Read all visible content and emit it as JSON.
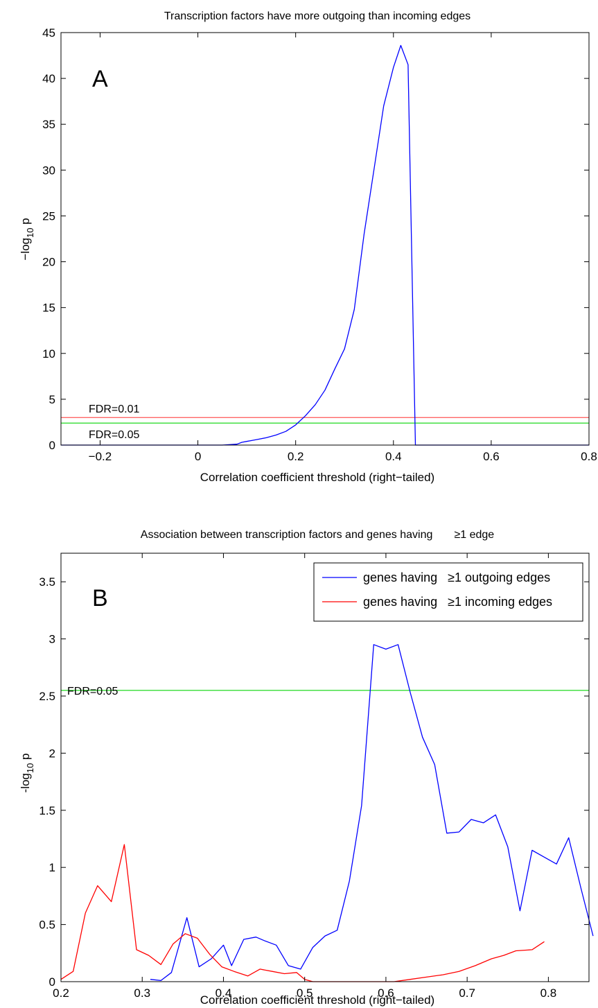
{
  "chart_data": [
    {
      "type": "line",
      "panel_label": "A",
      "title": "Transcription factors have more outgoing than incoming edges",
      "xlabel": "Correlation coefficient threshold (right−tailed)",
      "ylabel": {
        "prefix": "−log",
        "sub": "10",
        "suffix": " p"
      },
      "xlim": [
        -0.28,
        0.8
      ],
      "ylim": [
        0,
        45
      ],
      "xticks": [
        -0.2,
        0,
        0.2,
        0.4,
        0.6,
        0.8
      ],
      "xtick_labels": [
        "−0.2",
        "0",
        "0.2",
        "0.4",
        "0.6",
        "0.8"
      ],
      "yticks": [
        0,
        5,
        10,
        15,
        20,
        25,
        30,
        35,
        40,
        45
      ],
      "ytick_labels": [
        "0",
        "5",
        "10",
        "15",
        "20",
        "25",
        "30",
        "35",
        "40",
        "45"
      ],
      "series": [
        {
          "color": "#0000ff",
          "x": [
            -0.28,
            0.0,
            0.05,
            0.08,
            0.09,
            0.1,
            0.12,
            0.14,
            0.16,
            0.18,
            0.2,
            0.22,
            0.24,
            0.26,
            0.28,
            0.3,
            0.32,
            0.34,
            0.36,
            0.38,
            0.4,
            0.415,
            0.43,
            0.445,
            0.46,
            0.48,
            0.8
          ],
          "y": [
            0,
            0,
            0,
            0.1,
            0.3,
            0.4,
            0.6,
            0.8,
            1.1,
            1.5,
            2.2,
            3.2,
            4.4,
            6.0,
            8.3,
            10.5,
            14.8,
            23.0,
            30.0,
            37.0,
            41.2,
            43.6,
            41.5,
            0,
            0,
            0,
            0
          ]
        }
      ],
      "hlines": [
        {
          "label": "FDR=0.01",
          "y": 3.0,
          "color": "#ff6666"
        },
        {
          "label": "FDR=0.05",
          "y": 2.4,
          "color": "#33dd33"
        }
      ]
    },
    {
      "type": "line",
      "panel_label": "B",
      "title": "Association between transcription factors and genes having       ≥1 edge",
      "xlabel": "Correlation coefficient threshold (right−tailed)",
      "ylabel": {
        "prefix": "-log",
        "sub": "10",
        "suffix": " p"
      },
      "xlim": [
        0.2,
        0.85
      ],
      "ylim": [
        0,
        3.75
      ],
      "xticks": [
        0.2,
        0.3,
        0.4,
        0.5,
        0.6,
        0.7,
        0.8
      ],
      "xtick_labels": [
        "0.2",
        "0.3",
        "0.4",
        "0.5",
        "0.6",
        "0.7",
        "0.8"
      ],
      "yticks": [
        0,
        0.5,
        1,
        1.5,
        2,
        2.5,
        3,
        3.5
      ],
      "ytick_labels": [
        "0",
        "0.5",
        "1",
        "1.5",
        "2",
        "2.5",
        "3",
        "3.5"
      ],
      "legend_position": "top-right",
      "series": [
        {
          "name": "genes having   ≥1 outgoing edges",
          "color": "#0000ff",
          "x": [
            0.31,
            0.323,
            0.336,
            0.355,
            0.37,
            0.385,
            0.4,
            0.41,
            0.425,
            0.44,
            0.45,
            0.465,
            0.48,
            0.495,
            0.51,
            0.525,
            0.54,
            0.555,
            0.57,
            0.585,
            0.6,
            0.615,
            0.63,
            0.645,
            0.66,
            0.675,
            0.69,
            0.705,
            0.72,
            0.735,
            0.75,
            0.765,
            0.78,
            0.795,
            0.81,
            0.825,
            0.84,
            0.855
          ],
          "y": [
            0.02,
            0.01,
            0.08,
            0.56,
            0.13,
            0.2,
            0.32,
            0.14,
            0.37,
            0.39,
            0.36,
            0.32,
            0.14,
            0.11,
            0.3,
            0.4,
            0.45,
            0.88,
            1.54,
            2.95,
            2.91,
            2.95,
            2.53,
            2.14,
            1.9,
            1.3,
            1.31,
            1.42,
            1.39,
            1.46,
            1.18,
            0.62,
            1.15,
            1.09,
            1.03,
            1.26,
            0.82,
            0.4
          ]
        },
        {
          "name": "genes having   ≥1 incoming edges",
          "color": "#ff0000",
          "x": [
            0.2,
            0.215,
            0.23,
            0.245,
            0.262,
            0.278,
            0.293,
            0.308,
            0.323,
            0.338,
            0.353,
            0.368,
            0.383,
            0.398,
            0.413,
            0.43,
            0.445,
            0.46,
            0.475,
            0.49,
            0.5,
            0.51,
            0.53,
            0.55,
            0.57,
            0.59,
            0.61,
            0.63,
            0.65,
            0.67,
            0.69,
            0.71,
            0.73,
            0.745,
            0.76,
            0.78,
            0.795
          ],
          "y": [
            0.02,
            0.09,
            0.6,
            0.84,
            0.7,
            1.2,
            0.28,
            0.23,
            0.15,
            0.33,
            0.42,
            0.38,
            0.24,
            0.13,
            0.09,
            0.05,
            0.11,
            0.09,
            0.07,
            0.08,
            0.02,
            0,
            0,
            0,
            0,
            0,
            0,
            0.02,
            0.04,
            0.06,
            0.09,
            0.14,
            0.2,
            0.23,
            0.27,
            0.28,
            0.35
          ]
        }
      ],
      "hlines": [
        {
          "label": "FDR=0.05",
          "y": 2.55,
          "color": "#33dd33"
        }
      ]
    }
  ]
}
